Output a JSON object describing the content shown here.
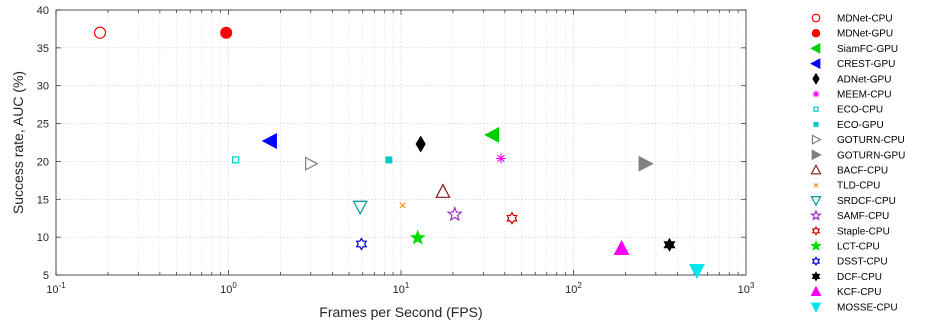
{
  "chart_data": {
    "type": "scatter",
    "title": "",
    "xlabel": "Frames per Second (FPS)",
    "ylabel": "Success rate, AUC (%)",
    "xscale": "log",
    "xlim": [
      0.1,
      1000
    ],
    "ylim": [
      5,
      40
    ],
    "grid": true,
    "legend_placement": "right",
    "x_tick_labels": [
      {
        "value": 0.1,
        "base": "10",
        "exp": "-1"
      },
      {
        "value": 1,
        "base": "10",
        "exp": "0"
      },
      {
        "value": 10,
        "base": "10",
        "exp": "1"
      },
      {
        "value": 100,
        "base": "10",
        "exp": "2"
      },
      {
        "value": 1000,
        "base": "10",
        "exp": "3"
      }
    ],
    "y_ticks": [
      5,
      10,
      15,
      20,
      25,
      30,
      35,
      40
    ],
    "series": [
      {
        "name": "MDNet-CPU",
        "x": 0.18,
        "y": 37.0,
        "marker": "circle-open",
        "color": "#ff0000"
      },
      {
        "name": "MDNet-GPU",
        "x": 0.97,
        "y": 37.0,
        "marker": "circle",
        "color": "#ff0000"
      },
      {
        "name": "SiamFC-GPU",
        "x": 34,
        "y": 23.5,
        "marker": "triangle-left",
        "color": "#00cc00"
      },
      {
        "name": "CREST-GPU",
        "x": 1.75,
        "y": 22.7,
        "marker": "triangle-left",
        "color": "#0000ff"
      },
      {
        "name": "ADNet-GPU",
        "x": 13,
        "y": 22.3,
        "marker": "diamond",
        "color": "#000000"
      },
      {
        "name": "MEEM-CPU",
        "x": 38,
        "y": 20.4,
        "marker": "asterisk",
        "color": "#ff00ff"
      },
      {
        "name": "ECO-CPU",
        "x": 1.1,
        "y": 20.2,
        "marker": "square-open",
        "color": "#00cccc"
      },
      {
        "name": "ECO-GPU",
        "x": 8.5,
        "y": 20.2,
        "marker": "square",
        "color": "#00cccc"
      },
      {
        "name": "GOTURN-CPU",
        "x": 3.0,
        "y": 19.7,
        "marker": "triangle-right-open",
        "color": "#808080"
      },
      {
        "name": "GOTURN-GPU",
        "x": 260,
        "y": 19.7,
        "marker": "triangle-right",
        "color": "#808080"
      },
      {
        "name": "BACF-CPU",
        "x": 17.5,
        "y": 16.0,
        "marker": "triangle-up-open",
        "color": "#8b1a1a"
      },
      {
        "name": "TLD-CPU",
        "x": 10.2,
        "y": 14.2,
        "marker": "x",
        "color": "#ff8c1a"
      },
      {
        "name": "SRDCF-CPU",
        "x": 5.8,
        "y": 14.0,
        "marker": "triangle-down-open",
        "color": "#009999"
      },
      {
        "name": "SAMF-CPU",
        "x": 20.5,
        "y": 13.0,
        "marker": "star-open",
        "color": "#9933cc"
      },
      {
        "name": "Staple-CPU",
        "x": 44,
        "y": 12.5,
        "marker": "hexagram-open",
        "color": "#cc0000"
      },
      {
        "name": "LCT-CPU",
        "x": 12.5,
        "y": 9.9,
        "marker": "star",
        "color": "#00dd00"
      },
      {
        "name": "DSST-CPU",
        "x": 5.9,
        "y": 9.1,
        "marker": "hexagram-open",
        "color": "#0000cc"
      },
      {
        "name": "DCF-CPU",
        "x": 360,
        "y": 9.0,
        "marker": "hexagram",
        "color": "#000000"
      },
      {
        "name": "KCF-CPU",
        "x": 190,
        "y": 8.5,
        "marker": "triangle-up",
        "color": "#ff00ff"
      },
      {
        "name": "MOSSE-CPU",
        "x": 520,
        "y": 5.6,
        "marker": "triangle-down",
        "color": "#00e5ee"
      }
    ]
  }
}
